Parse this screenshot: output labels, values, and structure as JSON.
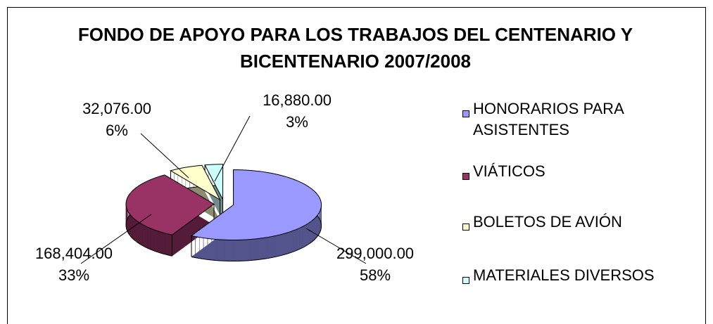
{
  "chart_data": {
    "type": "pie3d",
    "title": "FONDO DE APOYO PARA LOS TRABAJOS DEL CENTENARIO Y BICENTENARIO 2007/2008",
    "categories": [
      "HONORARIOS PARA ASISTENTES",
      "VIÁTICOS",
      "BOLETOS DE AVIÓN",
      "MATERIALES DIVERSOS"
    ],
    "values": [
      299000,
      168404,
      32076,
      16880
    ],
    "value_labels": [
      "299,000.00",
      "168,404.00",
      "32,076.00",
      "16,880.00"
    ],
    "percents": [
      58,
      33,
      6,
      3
    ],
    "percent_labels": [
      "58%",
      "33%",
      "6%",
      "3%"
    ],
    "colors": [
      "#9999ff",
      "#993366",
      "#ffffcc",
      "#ccffff"
    ],
    "legend": "right"
  }
}
